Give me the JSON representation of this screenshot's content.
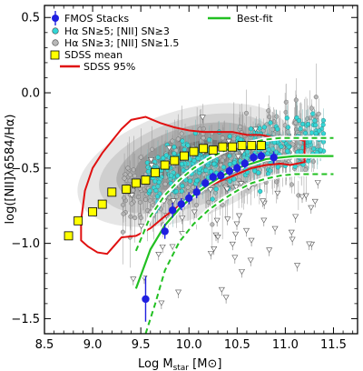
{
  "chart_data": {
    "type": "scatter",
    "xlabel": "Log M",
    "xlabel_sub": "star",
    "xlabel_unit": "[M⊙]",
    "ylabel": "log([NII]λ6584/Hα)",
    "xlim": [
      8.5,
      11.75
    ],
    "ylim": [
      -1.6,
      0.58
    ],
    "xticks": [
      8.5,
      9.0,
      9.5,
      10.0,
      10.5,
      11.0,
      11.5
    ],
    "xtick_labels": [
      "8.5",
      "9.0",
      "9.5",
      "10.0",
      "10.5",
      "11.0",
      "11.5"
    ],
    "yticks": [
      -1.5,
      -1.0,
      -0.5,
      0.0,
      0.5
    ],
    "ytick_labels": [
      "−1.5",
      "−1.0",
      "−0.5",
      "0.0",
      "0.5"
    ],
    "grid": false,
    "legend_position": "top",
    "legend": [
      {
        "label": "FMOS Stacks",
        "marker": "blue-circle-errorbar"
      },
      {
        "label": "Hα SN≥5; [NII] SN≥3",
        "marker": "cyan-circle"
      },
      {
        "label": "Hα SN≥3; [NII] SN≥1.5",
        "marker": "gray-circle"
      },
      {
        "label": "SDSS mean",
        "marker": "yellow-square"
      },
      {
        "label": "SDSS 95%",
        "marker": "red-line"
      },
      {
        "label": "Best-fit",
        "marker": "green-line"
      }
    ],
    "colors": {
      "fmos": "#1f1fe0",
      "cyan": "#33d6d6",
      "gray": "#b8b8b8",
      "sdss_mean": "#ffff00",
      "sdss95": "#e01010",
      "bestfit": "#22c022"
    },
    "series": [
      {
        "name": "FMOS Stacks",
        "x": [
          9.55,
          9.75,
          9.83,
          9.92,
          10.0,
          10.08,
          10.17,
          10.25,
          10.33,
          10.42,
          10.5,
          10.58,
          10.67,
          10.75,
          10.88
        ],
        "y": [
          -1.37,
          -0.92,
          -0.78,
          -0.74,
          -0.7,
          -0.66,
          -0.6,
          -0.56,
          -0.55,
          -0.52,
          -0.5,
          -0.47,
          -0.43,
          -0.42,
          -0.43
        ],
        "yerr": [
          0.15,
          0.05,
          0.05,
          0.04,
          0.04,
          0.04,
          0.03,
          0.03,
          0.03,
          0.03,
          0.03,
          0.03,
          0.03,
          0.03,
          0.04
        ]
      },
      {
        "name": "SDSS mean",
        "x": [
          8.75,
          8.85,
          9.0,
          9.1,
          9.2,
          9.35,
          9.45,
          9.55,
          9.65,
          9.75,
          9.85,
          9.95,
          10.05,
          10.15,
          10.25,
          10.35,
          10.45,
          10.55,
          10.65,
          10.75
        ],
        "y": [
          -0.95,
          -0.85,
          -0.79,
          -0.74,
          -0.66,
          -0.64,
          -0.6,
          -0.58,
          -0.53,
          -0.48,
          -0.45,
          -0.42,
          -0.39,
          -0.37,
          -0.38,
          -0.36,
          -0.36,
          -0.35,
          -0.35,
          -0.35
        ]
      },
      {
        "name": "SDSS 95%",
        "x": [
          8.88,
          8.95,
          9.05,
          9.15,
          9.3,
          9.45,
          9.6,
          9.75,
          9.9,
          10.05,
          10.2,
          10.35,
          10.5,
          10.65,
          10.8,
          10.95,
          11.05,
          11.2,
          11.2,
          11.05,
          10.9,
          10.75,
          10.6,
          10.45,
          10.3,
          10.15,
          10.0,
          9.85,
          9.7,
          9.55,
          9.4,
          9.3,
          9.2,
          9.1,
          9.0,
          8.92,
          8.88
        ],
        "y": [
          -0.98,
          -1.02,
          -1.06,
          -1.07,
          -0.96,
          -0.95,
          -0.9,
          -0.82,
          -0.75,
          -0.68,
          -0.62,
          -0.58,
          -0.54,
          -0.5,
          -0.48,
          -0.47,
          -0.48,
          -0.46,
          -0.32,
          -0.29,
          -0.3,
          -0.28,
          -0.28,
          -0.26,
          -0.26,
          -0.26,
          -0.25,
          -0.23,
          -0.2,
          -0.16,
          -0.18,
          -0.24,
          -0.32,
          -0.4,
          -0.5,
          -0.65,
          -0.85
        ]
      },
      {
        "name": "Best-fit",
        "x": [
          9.45,
          9.6,
          9.75,
          9.9,
          10.05,
          10.2,
          10.35,
          10.5,
          10.65,
          10.8,
          10.95,
          11.1,
          11.3,
          11.5
        ],
        "y": [
          -1.3,
          -1.04,
          -0.88,
          -0.77,
          -0.68,
          -0.61,
          -0.55,
          -0.5,
          -0.47,
          -0.44,
          -0.43,
          -0.42,
          -0.42,
          -0.42
        ]
      },
      {
        "name": "Best-fit upper",
        "x": [
          9.45,
          9.6,
          9.75,
          9.9,
          10.05,
          10.2,
          10.35,
          10.5,
          10.65,
          10.8,
          10.95,
          11.1,
          11.3,
          11.5
        ],
        "y": [
          -1.05,
          -0.82,
          -0.68,
          -0.58,
          -0.5,
          -0.44,
          -0.39,
          -0.35,
          -0.33,
          -0.31,
          -0.3,
          -0.3,
          -0.3,
          -0.3
        ]
      },
      {
        "name": "Best-fit lower",
        "x": [
          9.55,
          9.65,
          9.75,
          9.9,
          10.05,
          10.2,
          10.35,
          10.5,
          10.65,
          10.8,
          10.95,
          11.1,
          11.3,
          11.5
        ],
        "y": [
          -1.6,
          -1.4,
          -1.18,
          -0.99,
          -0.87,
          -0.78,
          -0.71,
          -0.65,
          -0.6,
          -0.57,
          -0.55,
          -0.54,
          -0.54,
          -0.54
        ]
      }
    ],
    "density_levels": [
      {
        "level": 1,
        "color": "#e6e6e6"
      },
      {
        "level": 2,
        "color": "#cfcfcf"
      },
      {
        "level": 3,
        "color": "#b3b3b3"
      },
      {
        "level": 4,
        "color": "#969696"
      },
      {
        "level": 5,
        "color": "#777777"
      }
    ]
  }
}
